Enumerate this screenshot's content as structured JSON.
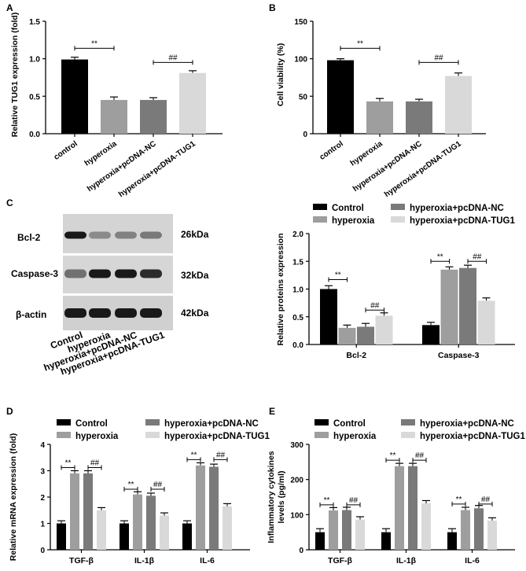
{
  "panels": {
    "A": "A",
    "B": "B",
    "C": "C",
    "D": "D",
    "E": "E"
  },
  "colors": {
    "black": "#000000",
    "mid": "#9e9e9e",
    "dark_gray": "#7a7a7a",
    "light": "#d9d9d9"
  },
  "blot": {
    "proteins": [
      "Bcl-2",
      "Caspase-3",
      "β-actin"
    ],
    "kda": [
      "26kDa",
      "32kDa",
      "42kDa"
    ],
    "lanes": [
      "Control",
      "hyperoxia",
      "hyperoxia+pcDNA-NC",
      "hyperoxia+pcDNA-TUG1"
    ],
    "band_intensity": [
      [
        1.0,
        0.35,
        0.4,
        0.45
      ],
      [
        0.5,
        1.0,
        1.0,
        0.9
      ],
      [
        1.0,
        1.0,
        1.0,
        1.0
      ]
    ]
  },
  "chart_data": [
    {
      "id": "A",
      "type": "bar",
      "ylabel": "Relative TUG1 expression (fold)",
      "ylim": [
        0,
        1.5
      ],
      "yticks": [
        "0.0",
        "0.5",
        "1.0",
        "1.5"
      ],
      "categories": [
        "control",
        "hyperoxia",
        "hyperoxia+pcDNA-NC",
        "hyperoxia+pcDNA-TUG1"
      ],
      "values": [
        0.99,
        0.45,
        0.45,
        0.81
      ],
      "errors": [
        0.03,
        0.04,
        0.03,
        0.03
      ],
      "annotations": [
        {
          "text": "**",
          "from": 0,
          "to": 1,
          "y": 1.14
        },
        {
          "text": "##",
          "from": 2,
          "to": 3,
          "y": 0.95
        }
      ]
    },
    {
      "id": "B",
      "type": "bar",
      "ylabel": "Cell viability (%)",
      "ylim": [
        0,
        150
      ],
      "yticks": [
        "0",
        "50",
        "100",
        "150"
      ],
      "categories": [
        "control",
        "hyperoxia",
        "hyperoxia+pcDNA-NC",
        "hyperoxia+pcDNA-TUG1"
      ],
      "values": [
        98,
        43,
        43,
        77
      ],
      "errors": [
        2,
        4,
        3,
        4
      ],
      "annotations": [
        {
          "text": "**",
          "from": 0,
          "to": 1,
          "y": 114
        },
        {
          "text": "##",
          "from": 2,
          "to": 3,
          "y": 95
        }
      ]
    },
    {
      "id": "C",
      "type": "bar",
      "ylabel": "Relative proteins expression",
      "ylim": [
        0,
        2.0
      ],
      "yticks": [
        "0.0",
        "0.5",
        "1.0",
        "1.5",
        "2.0"
      ],
      "categories": [
        "Bcl-2",
        "Caspase-3"
      ],
      "series": [
        {
          "name": "Control",
          "values": [
            1.0,
            0.35
          ],
          "errors": [
            0.06,
            0.05
          ]
        },
        {
          "name": "hyperoxia",
          "values": [
            0.3,
            1.35
          ],
          "errors": [
            0.05,
            0.05
          ]
        },
        {
          "name": "hyperoxia+pcDNA-NC",
          "values": [
            0.32,
            1.38
          ],
          "errors": [
            0.06,
            0.05
          ]
        },
        {
          "name": "hyperoxia+pcDNA-TUG1",
          "values": [
            0.52,
            0.79
          ],
          "errors": [
            0.05,
            0.05
          ]
        }
      ],
      "annotations": [
        {
          "text": "**",
          "group": 0,
          "from": 0,
          "to": 1,
          "y": 1.17
        },
        {
          "text": "##",
          "group": 0,
          "from": 2,
          "to": 3,
          "y": 0.62
        },
        {
          "text": "**",
          "group": 1,
          "from": 0,
          "to": 1,
          "y": 1.5
        },
        {
          "text": "##",
          "group": 1,
          "from": 2,
          "to": 3,
          "y": 1.5
        }
      ],
      "legend": "top"
    },
    {
      "id": "D",
      "type": "bar",
      "ylabel": "Relative mRNA expression (fold)",
      "ylim": [
        0,
        4
      ],
      "yticks": [
        "0",
        "1",
        "2",
        "3",
        "4"
      ],
      "categories": [
        "TGF-β",
        "IL-1β",
        "IL-6"
      ],
      "series": [
        {
          "name": "Control",
          "values": [
            1.0,
            1.0,
            1.0
          ],
          "errors": [
            0.1,
            0.1,
            0.1
          ]
        },
        {
          "name": "hyperoxia",
          "values": [
            2.9,
            2.1,
            3.2
          ],
          "errors": [
            0.1,
            0.1,
            0.1
          ]
        },
        {
          "name": "hyperoxia+pcDNA-NC",
          "values": [
            2.9,
            2.05,
            3.15
          ],
          "errors": [
            0.1,
            0.1,
            0.1
          ]
        },
        {
          "name": "hyperoxia+pcDNA-TUG1",
          "values": [
            1.5,
            1.3,
            1.65
          ],
          "errors": [
            0.1,
            0.1,
            0.1
          ]
        }
      ],
      "annotations": [
        {
          "text": "**",
          "group": 0,
          "from": 0,
          "to": 1,
          "y": 3.12
        },
        {
          "text": "##",
          "group": 0,
          "from": 2,
          "to": 3,
          "y": 3.12
        },
        {
          "text": "**",
          "group": 1,
          "from": 0,
          "to": 1,
          "y": 2.3
        },
        {
          "text": "##",
          "group": 1,
          "from": 2,
          "to": 3,
          "y": 2.3
        },
        {
          "text": "**",
          "group": 2,
          "from": 0,
          "to": 1,
          "y": 3.42
        },
        {
          "text": "##",
          "group": 2,
          "from": 2,
          "to": 3,
          "y": 3.42
        }
      ],
      "legend": "top"
    },
    {
      "id": "E",
      "type": "bar",
      "ylabel_lines": [
        "Inflammatory cytokines",
        "levels (pg/ml)"
      ],
      "ylim": [
        0,
        300
      ],
      "yticks": [
        "0",
        "100",
        "200",
        "300"
      ],
      "categories": [
        "TGF-β",
        "IL-1β",
        "IL-6"
      ],
      "series": [
        {
          "name": "Control",
          "values": [
            50,
            50,
            50
          ],
          "errors": [
            10,
            10,
            10
          ]
        },
        {
          "name": "hyperoxia",
          "values": [
            112,
            238,
            113
          ],
          "errors": [
            8,
            8,
            8
          ]
        },
        {
          "name": "hyperoxia+pcDNA-NC",
          "values": [
            113,
            238,
            118
          ],
          "errors": [
            8,
            8,
            8
          ]
        },
        {
          "name": "hyperoxia+pcDNA-TUG1",
          "values": [
            86,
            132,
            83
          ],
          "errors": [
            8,
            8,
            8
          ]
        }
      ],
      "annotations": [
        {
          "text": "**",
          "group": 0,
          "from": 0,
          "to": 1,
          "y": 128
        },
        {
          "text": "##",
          "group": 0,
          "from": 2,
          "to": 3,
          "y": 128
        },
        {
          "text": "**",
          "group": 1,
          "from": 0,
          "to": 1,
          "y": 255
        },
        {
          "text": "##",
          "group": 1,
          "from": 2,
          "to": 3,
          "y": 255
        },
        {
          "text": "**",
          "group": 2,
          "from": 0,
          "to": 1,
          "y": 130
        },
        {
          "text": "##",
          "group": 2,
          "from": 2,
          "to": 3,
          "y": 130
        }
      ],
      "legend": "top"
    }
  ]
}
